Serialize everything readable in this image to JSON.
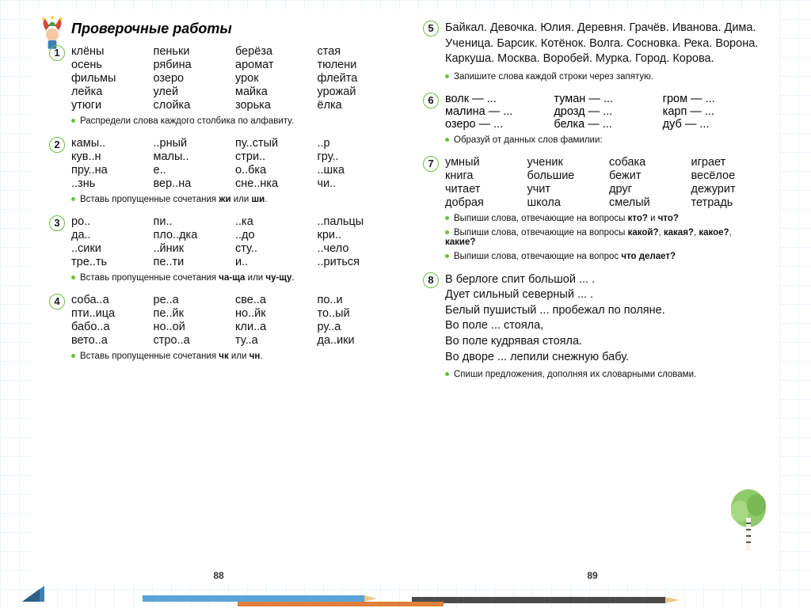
{
  "colors": {
    "accent": "#6bc13a",
    "text": "#111111",
    "bg": "#ffffff",
    "grid": "#cfe3f5"
  },
  "left": {
    "title": "Проверочные работы",
    "pagenum": "88",
    "exercises": [
      {
        "num": "1",
        "cols": 4,
        "rows": [
          [
            "клёны",
            "пеньки",
            "берёза",
            "стая"
          ],
          [
            "осень",
            "рябина",
            "аромат",
            "тюлени"
          ],
          [
            "фильмы",
            "озеро",
            "урок",
            "флейта"
          ],
          [
            "лейка",
            "улей",
            "майка",
            "урожай"
          ],
          [
            "утюги",
            "слойка",
            "зорька",
            "ёлка"
          ]
        ],
        "instructions": [
          "Распредели слова каждого столбика по алфавиту."
        ]
      },
      {
        "num": "2",
        "cols": 4,
        "rows": [
          [
            "камы..",
            "..рный",
            "пу..стый",
            "..р"
          ],
          [
            "кув..н",
            "малы..",
            "стри..",
            "гру.."
          ],
          [
            "пру..на",
            "е..",
            "о..бка",
            "..шка"
          ],
          [
            "..знь",
            "вер..на",
            "сне..нка",
            "чи.."
          ]
        ],
        "instructions_html": [
          "Вставь пропущенные сочетания <b>жи</b> или <b>ши</b>."
        ]
      },
      {
        "num": "3",
        "cols": 4,
        "rows": [
          [
            "ро..",
            "пи..",
            "..ка",
            "..пальцы"
          ],
          [
            "да..",
            "пло..дка",
            "..до",
            "кри.."
          ],
          [
            "..сики",
            "..йник",
            "сту..",
            "..чело"
          ],
          [
            "тре..ть",
            "пе..ти",
            "и..",
            "..риться"
          ]
        ],
        "instructions_html": [
          "Вставь пропущенные сочетания <b>ча-ща</b> или <b>чу-щу</b>."
        ]
      },
      {
        "num": "4",
        "cols": 4,
        "rows": [
          [
            "соба..а",
            "ре..а",
            "све..а",
            "по..и"
          ],
          [
            "пти..ица",
            "пе..йк",
            "но..йк",
            "то..ый"
          ],
          [
            "бабо..а",
            "но..ой",
            "кли..а",
            "ру..а"
          ],
          [
            "вето..а",
            "стро..а",
            "ту..а",
            "да..ики"
          ]
        ],
        "instructions_html": [
          "Вставь пропущенные сочетания <b>чк</b> или <b>чн</b>."
        ]
      }
    ]
  },
  "right": {
    "pagenum": "89",
    "exercises": [
      {
        "num": "5",
        "paragraph": "Байкал. Девочка. Юлия. Деревня. Грачёв. Иванова. Дима. Ученица. Барсик. Котёнок. Волга. Сосновка. Река. Ворона. Каркуша. Москва. Воробей. Мурка. Город. Корова.",
        "instructions": [
          "Запишите слова каждой строки через запятую."
        ]
      },
      {
        "num": "6",
        "dash_rows": [
          [
            "волк — ...",
            "туман — ...",
            "гром — ..."
          ],
          [
            "малина — ...",
            "дрозд — ...",
            "карп — ..."
          ],
          [
            "озеро — ...",
            "белка — ...",
            "дуб — ..."
          ]
        ],
        "instructions": [
          "Образуй от данных слов фамилии:"
        ]
      },
      {
        "num": "7",
        "cols": 4,
        "rows": [
          [
            "умный",
            "ученик",
            "собака",
            "играет"
          ],
          [
            "книга",
            "большие",
            "бежит",
            "весёлое"
          ],
          [
            "читает",
            "учит",
            "друг",
            "дежурит"
          ],
          [
            "добрая",
            "школа",
            "смелый",
            "тетрадь"
          ]
        ],
        "instructions_html": [
          "Выпиши слова, отвечающие на вопросы <b>кто?</b> и <b>что?</b>",
          "Выпиши слова, отвечающие на вопросы <b>какой?</b>, <b>какая?</b>, <b>какое?</b>, <b>какие?</b>",
          "Выпиши слова, отвечающие на вопрос <b>что делает?</b>"
        ]
      },
      {
        "num": "8",
        "lines": [
          "В берлоге спит большой ... .",
          "Дует сильный северный ... .",
          "Белый пушистый ... пробежал по поляне.",
          "Во поле ... стояла,",
          "Во поле кудрявая стояла.",
          "Во дворе ... лепили снежную бабу."
        ],
        "instructions": [
          "Спиши предложения, дополняя их словарными словами."
        ]
      }
    ]
  }
}
